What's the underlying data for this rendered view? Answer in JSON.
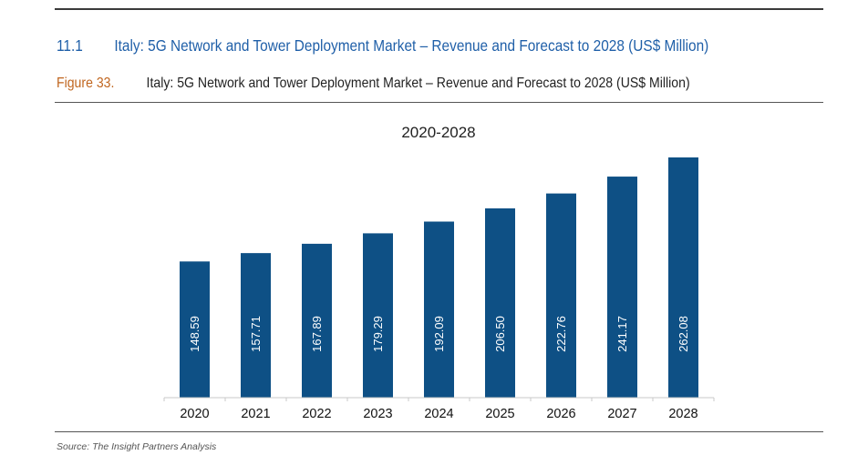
{
  "section": {
    "number": "11.1",
    "title": "Italy: 5G Network and Tower Deployment Market – Revenue and Forecast to 2028 (US$ Million)"
  },
  "figure": {
    "label": "Figure 33.",
    "title": "Italy: 5G Network and Tower Deployment Market – Revenue and Forecast to 2028 (US$ Million)"
  },
  "source": "Source: The Insight Partners Analysis",
  "colors": {
    "bar": "#0e5085",
    "heading": "#1f5fa8",
    "figure_label": "#c0651e"
  },
  "chart_data": {
    "type": "bar",
    "title": "2020-2028",
    "xlabel": "",
    "ylabel": "",
    "categories": [
      "2020",
      "2021",
      "2022",
      "2023",
      "2024",
      "2025",
      "2026",
      "2027",
      "2028"
    ],
    "values": [
      148.59,
      157.71,
      167.89,
      179.29,
      192.09,
      206.5,
      222.76,
      241.17,
      262.08
    ],
    "value_labels": [
      "148.59",
      "157.71",
      "167.89",
      "179.29",
      "192.09",
      "206.50",
      "222.76",
      "241.17",
      "262.08"
    ],
    "ylim": [
      0,
      262.08
    ],
    "grid": false,
    "legend": "none",
    "data_label_orientation": "vertical-inside"
  }
}
